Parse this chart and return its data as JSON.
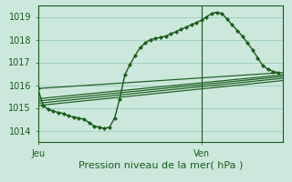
{
  "bg_color": "#cce8dd",
  "grid_color": "#99ccbb",
  "line_color": "#1a5c1a",
  "xlabel": "Pression niveau de la mer( hPa )",
  "ylim": [
    1013.5,
    1019.5
  ],
  "y_ticks": [
    1014,
    1015,
    1016,
    1017,
    1018,
    1019
  ],
  "xlim": [
    0,
    96
  ],
  "jeu_x": 0,
  "ven_x": 64,
  "vline_x": 64,
  "x_tick_positions": [
    0,
    64
  ],
  "x_tick_labels": [
    "Jeu",
    "Ven"
  ],
  "line1_x": [
    0,
    2,
    4,
    6,
    8,
    10,
    12,
    14,
    16,
    18,
    20,
    22,
    24,
    26,
    28,
    30,
    32,
    34,
    36,
    38,
    40,
    42,
    44,
    46,
    48,
    50,
    52,
    54,
    56,
    58,
    60,
    62,
    64,
    66,
    68,
    70,
    72,
    74,
    76,
    78,
    80,
    82,
    84,
    86,
    88,
    90,
    92,
    94
  ],
  "line1_y": [
    1015.85,
    1015.1,
    1014.95,
    1014.85,
    1014.8,
    1014.75,
    1014.65,
    1014.6,
    1014.55,
    1014.5,
    1014.35,
    1014.2,
    1014.15,
    1014.1,
    1014.15,
    1014.55,
    1015.4,
    1016.45,
    1016.9,
    1017.3,
    1017.65,
    1017.85,
    1018.0,
    1018.05,
    1018.1,
    1018.15,
    1018.25,
    1018.35,
    1018.45,
    1018.55,
    1018.65,
    1018.75,
    1018.85,
    1019.0,
    1019.15,
    1019.2,
    1019.15,
    1018.9,
    1018.65,
    1018.4,
    1018.15,
    1017.85,
    1017.55,
    1017.2,
    1016.85,
    1016.7,
    1016.6,
    1016.55
  ],
  "line2_x": [
    0,
    96
  ],
  "line2_y": [
    1015.1,
    1016.2
  ],
  "line3_x": [
    0,
    96
  ],
  "line3_y": [
    1015.2,
    1016.3
  ],
  "line4_x": [
    0,
    96
  ],
  "line4_y": [
    1015.3,
    1016.38
  ],
  "line5_x": [
    0,
    96
  ],
  "line5_y": [
    1015.4,
    1016.45
  ],
  "line6_x": [
    0,
    96
  ],
  "line6_y": [
    1015.85,
    1016.55
  ],
  "ylabel_fontsize": 6.5,
  "xlabel_fontsize": 8,
  "tick_fontsize": 7
}
